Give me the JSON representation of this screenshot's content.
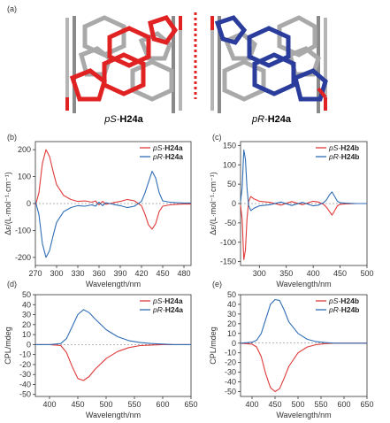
{
  "figure": {
    "panel_a": {
      "label": "(a)",
      "left_caption_prefix": "pS-",
      "left_caption_bold": "H24a",
      "right_caption_prefix": "pR-",
      "right_caption_bold": "H24a"
    }
  },
  "colors": {
    "red": "#e03a3a",
    "blue": "#2f6db5",
    "mol_gray": "#a9a9a9",
    "mol_dark_gray": "#7d7d7d",
    "mol_red": "#e02222",
    "mol_blue": "#2a3d9c",
    "divider": "#e02222"
  },
  "chart_data": [
    {
      "id": "b",
      "panel_label": "(b)",
      "type": "line",
      "xlabel": "Wavelength/nm",
      "ylabel": "Δε/(L·mol⁻¹·cm⁻¹)",
      "xlim": [
        270,
        490
      ],
      "ylim": [
        -230,
        230
      ],
      "xticks": [
        270,
        300,
        330,
        360,
        390,
        420,
        450,
        480
      ],
      "yticks": [
        -200,
        -100,
        0,
        100,
        200
      ],
      "legend": "top-right",
      "series": [
        {
          "name": "pS-H24a",
          "name_prefix": "pS-",
          "name_bold": "H24a",
          "color": "red",
          "x": [
            270,
            275,
            280,
            285,
            290,
            295,
            300,
            310,
            320,
            330,
            340,
            350,
            355,
            360,
            365,
            370,
            380,
            390,
            400,
            410,
            420,
            425,
            430,
            435,
            440,
            445,
            450,
            460,
            470,
            480,
            490
          ],
          "y": [
            -8,
            40,
            150,
            200,
            175,
            120,
            70,
            30,
            15,
            8,
            10,
            5,
            10,
            -5,
            8,
            -3,
            3,
            8,
            15,
            10,
            -8,
            -40,
            -80,
            -95,
            -75,
            -30,
            -10,
            -5,
            -3,
            -2,
            -2
          ]
        },
        {
          "name": "pR-H24a",
          "name_prefix": "pR-",
          "name_bold": "H24a",
          "color": "blue",
          "x": [
            270,
            275,
            280,
            285,
            290,
            295,
            300,
            310,
            320,
            330,
            340,
            350,
            355,
            360,
            365,
            370,
            380,
            390,
            400,
            410,
            420,
            425,
            430,
            435,
            440,
            445,
            450,
            460,
            470,
            480,
            490
          ],
          "y": [
            8,
            -40,
            -150,
            -200,
            -175,
            -120,
            -70,
            -30,
            -15,
            -8,
            -10,
            -5,
            -10,
            5,
            -8,
            3,
            -3,
            -8,
            -15,
            -10,
            8,
            40,
            80,
            120,
            95,
            40,
            10,
            5,
            3,
            2,
            2
          ]
        }
      ]
    },
    {
      "id": "c",
      "panel_label": "(c)",
      "type": "line",
      "xlabel": "Wavelength/nm",
      "ylabel": "Δε/(L·mol⁻¹·cm⁻¹)",
      "xlim": [
        265,
        500
      ],
      "ylim": [
        -160,
        160
      ],
      "xticks": [
        300,
        350,
        400,
        450,
        500
      ],
      "yticks": [
        -150,
        -100,
        -50,
        0,
        50,
        100,
        150
      ],
      "legend": "top-right",
      "series": [
        {
          "name": "pS-H24b",
          "name_prefix": "pS-",
          "name_bold": "H24b",
          "color": "red",
          "x": [
            265,
            268,
            271,
            274,
            277,
            280,
            284,
            290,
            300,
            320,
            340,
            360,
            380,
            400,
            410,
            420,
            425,
            430,
            435,
            440,
            445,
            450,
            460,
            480,
            500
          ],
          "y": [
            -5,
            -40,
            -145,
            -120,
            -40,
            5,
            18,
            12,
            6,
            3,
            -4,
            5,
            -3,
            6,
            4,
            -3,
            -10,
            -20,
            -30,
            -18,
            -6,
            -2,
            -1,
            0,
            0
          ]
        },
        {
          "name": "pR-H24b",
          "name_prefix": "pR-",
          "name_bold": "H24b",
          "color": "blue",
          "x": [
            265,
            268,
            271,
            274,
            277,
            280,
            284,
            290,
            300,
            320,
            340,
            360,
            380,
            400,
            410,
            420,
            425,
            430,
            435,
            440,
            445,
            450,
            460,
            480,
            500
          ],
          "y": [
            5,
            40,
            138,
            115,
            40,
            -5,
            -18,
            -12,
            -6,
            -3,
            4,
            -5,
            3,
            -6,
            -4,
            3,
            10,
            22,
            30,
            18,
            6,
            2,
            1,
            0,
            0
          ]
        }
      ]
    },
    {
      "id": "d",
      "panel_label": "(d)",
      "type": "line",
      "xlabel": "Wavelength/nm",
      "ylabel": "CPL/mdeg",
      "xlim": [
        375,
        650
      ],
      "ylim": [
        -52,
        50
      ],
      "xticks": [
        400,
        450,
        500,
        550,
        600,
        650
      ],
      "yticks": [
        -50,
        -40,
        -30,
        -20,
        -10,
        0,
        10,
        20,
        30,
        40,
        50
      ],
      "legend": "top-right",
      "series": [
        {
          "name": "pS-H24a",
          "name_prefix": "pS-",
          "name_bold": "H24a",
          "color": "red",
          "x": [
            375,
            400,
            420,
            430,
            440,
            450,
            460,
            470,
            480,
            500,
            520,
            540,
            560,
            580,
            600,
            620,
            650
          ],
          "y": [
            0,
            0,
            -1,
            -8,
            -22,
            -34,
            -36,
            -32,
            -25,
            -14,
            -7,
            -3,
            -1,
            -0.5,
            0,
            0,
            0
          ]
        },
        {
          "name": "pR-H24a",
          "name_prefix": "pR-",
          "name_bold": "H24a",
          "color": "blue",
          "x": [
            375,
            400,
            420,
            430,
            440,
            450,
            460,
            470,
            480,
            500,
            520,
            540,
            560,
            580,
            600,
            620,
            650
          ],
          "y": [
            0,
            0,
            1,
            6,
            18,
            30,
            35,
            32,
            26,
            15,
            8,
            4,
            2,
            1,
            0.5,
            0,
            0
          ]
        }
      ]
    },
    {
      "id": "e",
      "panel_label": "(e)",
      "type": "line",
      "xlabel": "Wavelength/nm",
      "ylabel": "CPL/mdeg",
      "xlim": [
        375,
        650
      ],
      "ylim": [
        -55,
        50
      ],
      "xticks": [
        400,
        450,
        500,
        550,
        600,
        650
      ],
      "yticks": [
        -50,
        -40,
        -30,
        -20,
        -10,
        0,
        10,
        20,
        30,
        40,
        50
      ],
      "legend": "top-right",
      "series": [
        {
          "name": "pS-H24b",
          "name_prefix": "pS-",
          "name_bold": "H24b",
          "color": "red",
          "x": [
            375,
            400,
            410,
            420,
            430,
            440,
            450,
            460,
            470,
            480,
            500,
            520,
            540,
            560,
            580,
            600,
            650
          ],
          "y": [
            0,
            -1,
            -4,
            -14,
            -32,
            -46,
            -50,
            -47,
            -36,
            -24,
            -10,
            -4,
            -1.5,
            -0.5,
            0,
            0,
            0
          ]
        },
        {
          "name": "pR-H24b",
          "name_prefix": "pR-",
          "name_bold": "H24b",
          "color": "blue",
          "x": [
            375,
            400,
            410,
            420,
            430,
            440,
            450,
            460,
            470,
            480,
            500,
            520,
            540,
            560,
            580,
            600,
            650
          ],
          "y": [
            0,
            1,
            3,
            10,
            25,
            40,
            45,
            44,
            34,
            22,
            10,
            4,
            1.5,
            0.5,
            0,
            0,
            0
          ]
        }
      ]
    }
  ]
}
